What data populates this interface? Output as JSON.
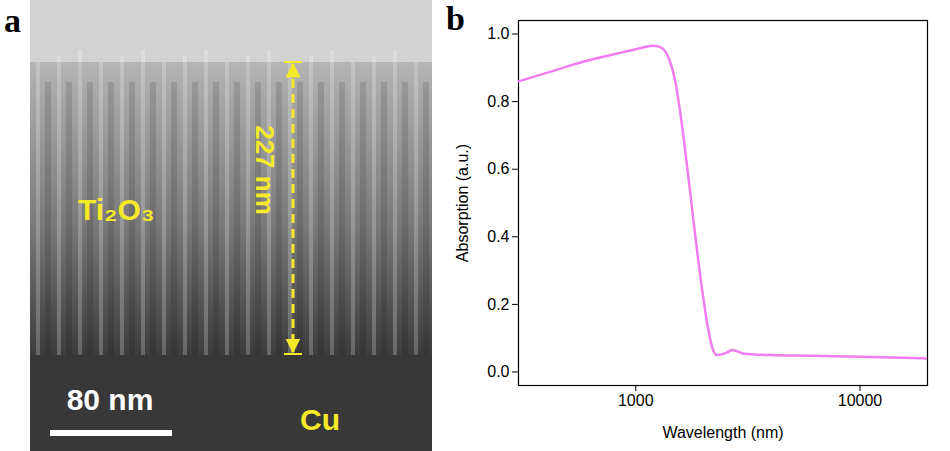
{
  "image_panel": {
    "panel_label": "a",
    "material": "Ti₂O₃",
    "thickness": "227 nm",
    "scale_bar": "80 nm",
    "substrate": "Cu"
  },
  "chart_data": {
    "type": "line",
    "panel_label": "b",
    "x_label": "Wavelength (nm)",
    "y_label": "Absorption (a.u.)",
    "log": "x",
    "color": "#f07cf0",
    "x": [
      300,
      400,
      500,
      600,
      800,
      1000,
      1200,
      1300,
      1400,
      1500,
      1600,
      1700,
      1800,
      1900,
      2000,
      2100,
      2200,
      2300,
      2500,
      2700,
      3000,
      4000,
      6000,
      10000,
      20000
    ],
    "values": [
      0.86,
      0.885,
      0.905,
      0.92,
      0.94,
      0.955,
      0.965,
      0.96,
      0.93,
      0.86,
      0.74,
      0.6,
      0.46,
      0.33,
      0.22,
      0.13,
      0.07,
      0.05,
      0.055,
      0.065,
      0.055,
      0.05,
      0.048,
      0.045,
      0.04
    ],
    "xlim": [
      300,
      20000
    ],
    "xticks": [
      1000,
      10000
    ],
    "ylim": [
      -0.04,
      1.04
    ],
    "yticks": [
      {
        "value": 0,
        "label": "0.0"
      },
      {
        "value": 0.2,
        "label": "0.2"
      },
      {
        "value": 0.4,
        "label": "0.4"
      },
      {
        "value": 0.6,
        "label": "0.6"
      },
      {
        "value": 0.8,
        "label": "0.8"
      },
      {
        "value": 1.0,
        "label": "1.0"
      }
    ]
  }
}
